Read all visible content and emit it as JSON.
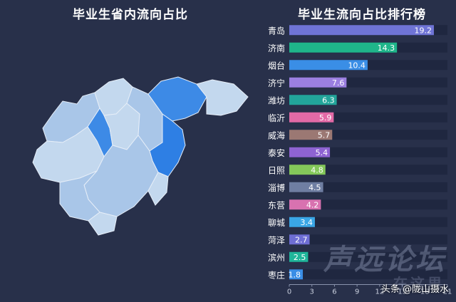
{
  "left_title": "毕业生省内流向占比",
  "credit": "头条 @陇山摄水",
  "watermark": "声远论坛",
  "watermark_sub": "在这里",
  "colors": {
    "background": "#28304a",
    "bar_track": "#1f2740",
    "map_light": "#c3d8ee",
    "map_mid": "#a9c6e8",
    "map_dark": "#3d8ae6",
    "map_darker": "#2e7fe4"
  },
  "chart_data": {
    "type": "bar",
    "orientation": "horizontal",
    "title": "毕业生流向占比排行榜",
    "categories": [
      "青岛",
      "济南",
      "烟台",
      "济宁",
      "潍坊",
      "临沂",
      "威海",
      "泰安",
      "日照",
      "淄博",
      "东营",
      "聊城",
      "菏泽",
      "滨州",
      "枣庄"
    ],
    "values": [
      19.2,
      14.3,
      10.4,
      7.6,
      6.3,
      5.9,
      5.7,
      5.4,
      4.8,
      4.5,
      4.2,
      3.4,
      2.7,
      2.5,
      1.8
    ],
    "value_labels": [
      "19.2",
      "14.3",
      "10.4",
      "7.6",
      "6.3",
      "5.9",
      "5.7",
      "5.4",
      "4.8",
      "4.5",
      "4.2",
      "3.4",
      "2.7",
      "2.5",
      "1.8"
    ],
    "colors": [
      "#6f74d6",
      "#1fb58a",
      "#3a8ee6",
      "#9b7fe0",
      "#22a59b",
      "#e36aa6",
      "#9b7873",
      "#8e63d2",
      "#84c85a",
      "#6f7ea2",
      "#d872b0",
      "#3aa6e6",
      "#6e6ed4",
      "#1fb59a",
      "#3a8ee6"
    ],
    "xlim": [
      0,
      21
    ],
    "xticks": [
      "0",
      "3",
      "6",
      "9",
      "12",
      "15",
      "18",
      "21"
    ],
    "grid": false,
    "legend": "none"
  }
}
